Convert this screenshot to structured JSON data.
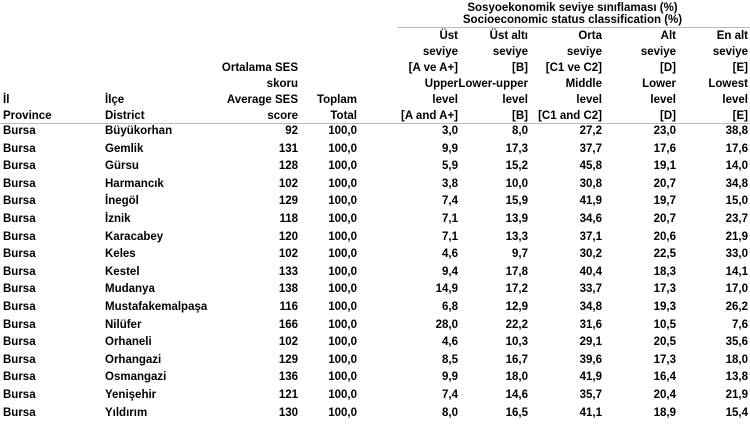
{
  "header": {
    "group_title_tr": "Sosyoekonomik seviye sınıflaması (%)",
    "group_title_en": "Socioeconomic status classification (%)"
  },
  "columns": [
    {
      "tr": [
        "İl"
      ],
      "en": [
        "Province"
      ]
    },
    {
      "tr": [
        "İlçe"
      ],
      "en": [
        "District"
      ]
    },
    {
      "tr": [
        "Ortalama SES",
        "skoru"
      ],
      "en": [
        "Average SES",
        "score"
      ]
    },
    {
      "tr": [
        "Toplam"
      ],
      "en": [
        "Total"
      ]
    },
    {
      "tr": [
        "Üst",
        "seviye",
        "[A ve A+]"
      ],
      "en": [
        "Upper",
        "level",
        "[A and A+]"
      ]
    },
    {
      "tr": [
        "Üst altı",
        "seviye",
        "[B]"
      ],
      "en": [
        "Lower-upper",
        "level",
        "[B]"
      ]
    },
    {
      "tr": [
        "Orta",
        "seviye",
        "[C1 ve C2]"
      ],
      "en": [
        "Middle",
        "level",
        "[C1 and C2]"
      ]
    },
    {
      "tr": [
        "Alt",
        "seviye",
        "[D]"
      ],
      "en": [
        "Lower",
        "level",
        "[D]"
      ]
    },
    {
      "tr": [
        "En alt",
        "seviye",
        "[E]"
      ],
      "en": [
        "Lowest",
        "level",
        "[E]"
      ]
    }
  ],
  "rows": [
    [
      "Bursa",
      "Büyükorhan",
      92,
      "100,0",
      "3,0",
      "8,0",
      "27,2",
      "23,0",
      "38,8"
    ],
    [
      "Bursa",
      "Gemlik",
      131,
      "100,0",
      "9,9",
      "17,3",
      "37,7",
      "17,6",
      "17,6"
    ],
    [
      "Bursa",
      "Gürsu",
      128,
      "100,0",
      "5,9",
      "15,2",
      "45,8",
      "19,1",
      "14,0"
    ],
    [
      "Bursa",
      "Harmancık",
      102,
      "100,0",
      "3,8",
      "10,0",
      "30,8",
      "20,7",
      "34,8"
    ],
    [
      "Bursa",
      "İnegöl",
      129,
      "100,0",
      "7,4",
      "15,9",
      "41,9",
      "19,7",
      "15,0"
    ],
    [
      "Bursa",
      "İznik",
      118,
      "100,0",
      "7,1",
      "13,9",
      "34,6",
      "20,7",
      "23,7"
    ],
    [
      "Bursa",
      "Karacabey",
      120,
      "100,0",
      "7,1",
      "13,3",
      "37,1",
      "20,6",
      "21,9"
    ],
    [
      "Bursa",
      "Keles",
      102,
      "100,0",
      "4,6",
      "9,7",
      "30,2",
      "22,5",
      "33,0"
    ],
    [
      "Bursa",
      "Kestel",
      133,
      "100,0",
      "9,4",
      "17,8",
      "40,4",
      "18,3",
      "14,1"
    ],
    [
      "Bursa",
      "Mudanya",
      138,
      "100,0",
      "14,9",
      "17,2",
      "33,7",
      "17,3",
      "17,0"
    ],
    [
      "Bursa",
      "Mustafakemalpaşa",
      116,
      "100,0",
      "6,8",
      "12,9",
      "34,8",
      "19,3",
      "26,2"
    ],
    [
      "Bursa",
      "Nilüfer",
      166,
      "100,0",
      "28,0",
      "22,2",
      "31,6",
      "10,5",
      "7,6"
    ],
    [
      "Bursa",
      "Orhaneli",
      102,
      "100,0",
      "4,6",
      "10,3",
      "29,1",
      "20,5",
      "35,6"
    ],
    [
      "Bursa",
      "Orhangazi",
      129,
      "100,0",
      "8,5",
      "16,7",
      "39,6",
      "17,3",
      "18,0"
    ],
    [
      "Bursa",
      "Osmangazi",
      136,
      "100,0",
      "9,9",
      "18,0",
      "41,9",
      "16,4",
      "13,8"
    ],
    [
      "Bursa",
      "Yenişehir",
      121,
      "100,0",
      "7,4",
      "14,6",
      "35,7",
      "20,4",
      "21,9"
    ],
    [
      "Bursa",
      "Yıldırım",
      130,
      "100,0",
      "8,0",
      "16,5",
      "41,1",
      "18,9",
      "15,4"
    ]
  ]
}
